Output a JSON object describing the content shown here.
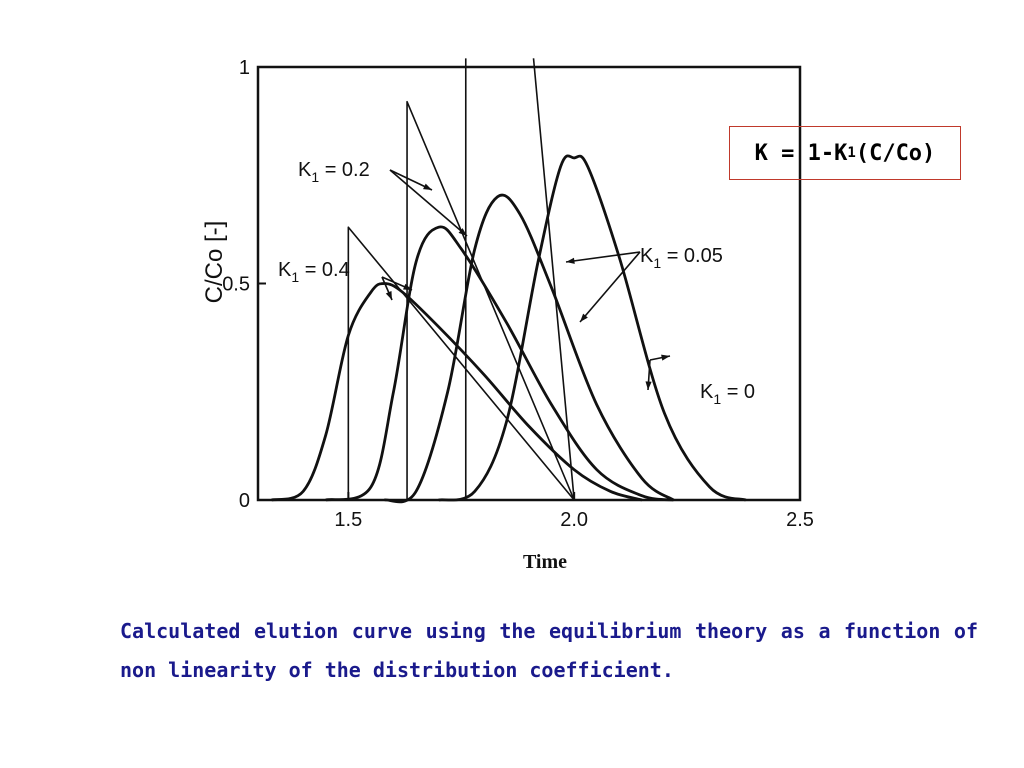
{
  "formula": {
    "prefix": "K = 1-K",
    "sub": "1",
    "suffix": "(C/Co)"
  },
  "caption": "Calculated elution curve using the equilibrium theory as a function of non linearity of the distribution coefficient.",
  "chart_data": {
    "type": "line",
    "xlabel": "Time",
    "ylabel": "C/Co [-]",
    "xlim": [
      1.3,
      2.5
    ],
    "ylim": [
      0,
      1
    ],
    "x_ticks": [
      "1.5",
      "2.0",
      "2.5"
    ],
    "y_ticks": [
      "0",
      "0.5",
      "1"
    ],
    "grid": false,
    "series_labels": [
      {
        "key": "K1=0.4",
        "text": "K1 = 0.4"
      },
      {
        "key": "K1=0.2",
        "text": "K1 = 0.2"
      },
      {
        "key": "K1=0.05",
        "text": "K1 = 0.05"
      },
      {
        "key": "K1=0",
        "text": "K1 = 0"
      }
    ],
    "series": [
      {
        "name": "K1 = 0.4",
        "kind": "calculated",
        "points": [
          [
            1.33,
            0
          ],
          [
            1.4,
            0.02
          ],
          [
            1.45,
            0.15
          ],
          [
            1.5,
            0.38
          ],
          [
            1.55,
            0.48
          ],
          [
            1.58,
            0.5
          ],
          [
            1.62,
            0.48
          ],
          [
            1.7,
            0.4
          ],
          [
            1.8,
            0.29
          ],
          [
            1.9,
            0.17
          ],
          [
            2.0,
            0.07
          ],
          [
            2.08,
            0.02
          ],
          [
            2.15,
            0
          ]
        ]
      },
      {
        "name": "K1 = 0.4",
        "kind": "equilibrium",
        "points": [
          [
            1.5,
            0
          ],
          [
            1.5,
            0.63
          ],
          [
            2.0,
            0
          ]
        ]
      },
      {
        "name": "K1 = 0.2",
        "kind": "calculated",
        "points": [
          [
            1.45,
            0
          ],
          [
            1.55,
            0.03
          ],
          [
            1.6,
            0.25
          ],
          [
            1.65,
            0.55
          ],
          [
            1.7,
            0.63
          ],
          [
            1.75,
            0.58
          ],
          [
            1.85,
            0.41
          ],
          [
            1.95,
            0.22
          ],
          [
            2.05,
            0.07
          ],
          [
            2.15,
            0.01
          ],
          [
            2.22,
            0
          ]
        ]
      },
      {
        "name": "K1 = 0.2",
        "kind": "equilibrium",
        "points": [
          [
            1.63,
            0
          ],
          [
            1.63,
            0.92
          ],
          [
            2.0,
            0
          ]
        ]
      },
      {
        "name": "K1 = 0.05",
        "kind": "calculated",
        "points": [
          [
            1.58,
            0
          ],
          [
            1.65,
            0.02
          ],
          [
            1.72,
            0.25
          ],
          [
            1.78,
            0.58
          ],
          [
            1.83,
            0.7
          ],
          [
            1.88,
            0.66
          ],
          [
            1.95,
            0.49
          ],
          [
            2.05,
            0.22
          ],
          [
            2.15,
            0.05
          ],
          [
            2.22,
            0
          ]
        ]
      },
      {
        "name": "K1 = 0.05",
        "kind": "equilibrium",
        "points": [
          [
            1.76,
            0
          ],
          [
            1.76,
            1.02
          ]
        ]
      },
      {
        "name": "K1 = 0",
        "kind": "calculated",
        "points": [
          [
            1.7,
            0
          ],
          [
            1.78,
            0.02
          ],
          [
            1.85,
            0.18
          ],
          [
            1.92,
            0.55
          ],
          [
            1.97,
            0.77
          ],
          [
            2.0,
            0.79
          ],
          [
            2.03,
            0.77
          ],
          [
            2.1,
            0.56
          ],
          [
            2.2,
            0.2
          ],
          [
            2.3,
            0.03
          ],
          [
            2.38,
            0
          ]
        ]
      },
      {
        "name": "K1 = 0",
        "kind": "equilibrium",
        "points": [
          [
            1.91,
            1.02
          ],
          [
            2.0,
            0
          ]
        ]
      }
    ]
  }
}
